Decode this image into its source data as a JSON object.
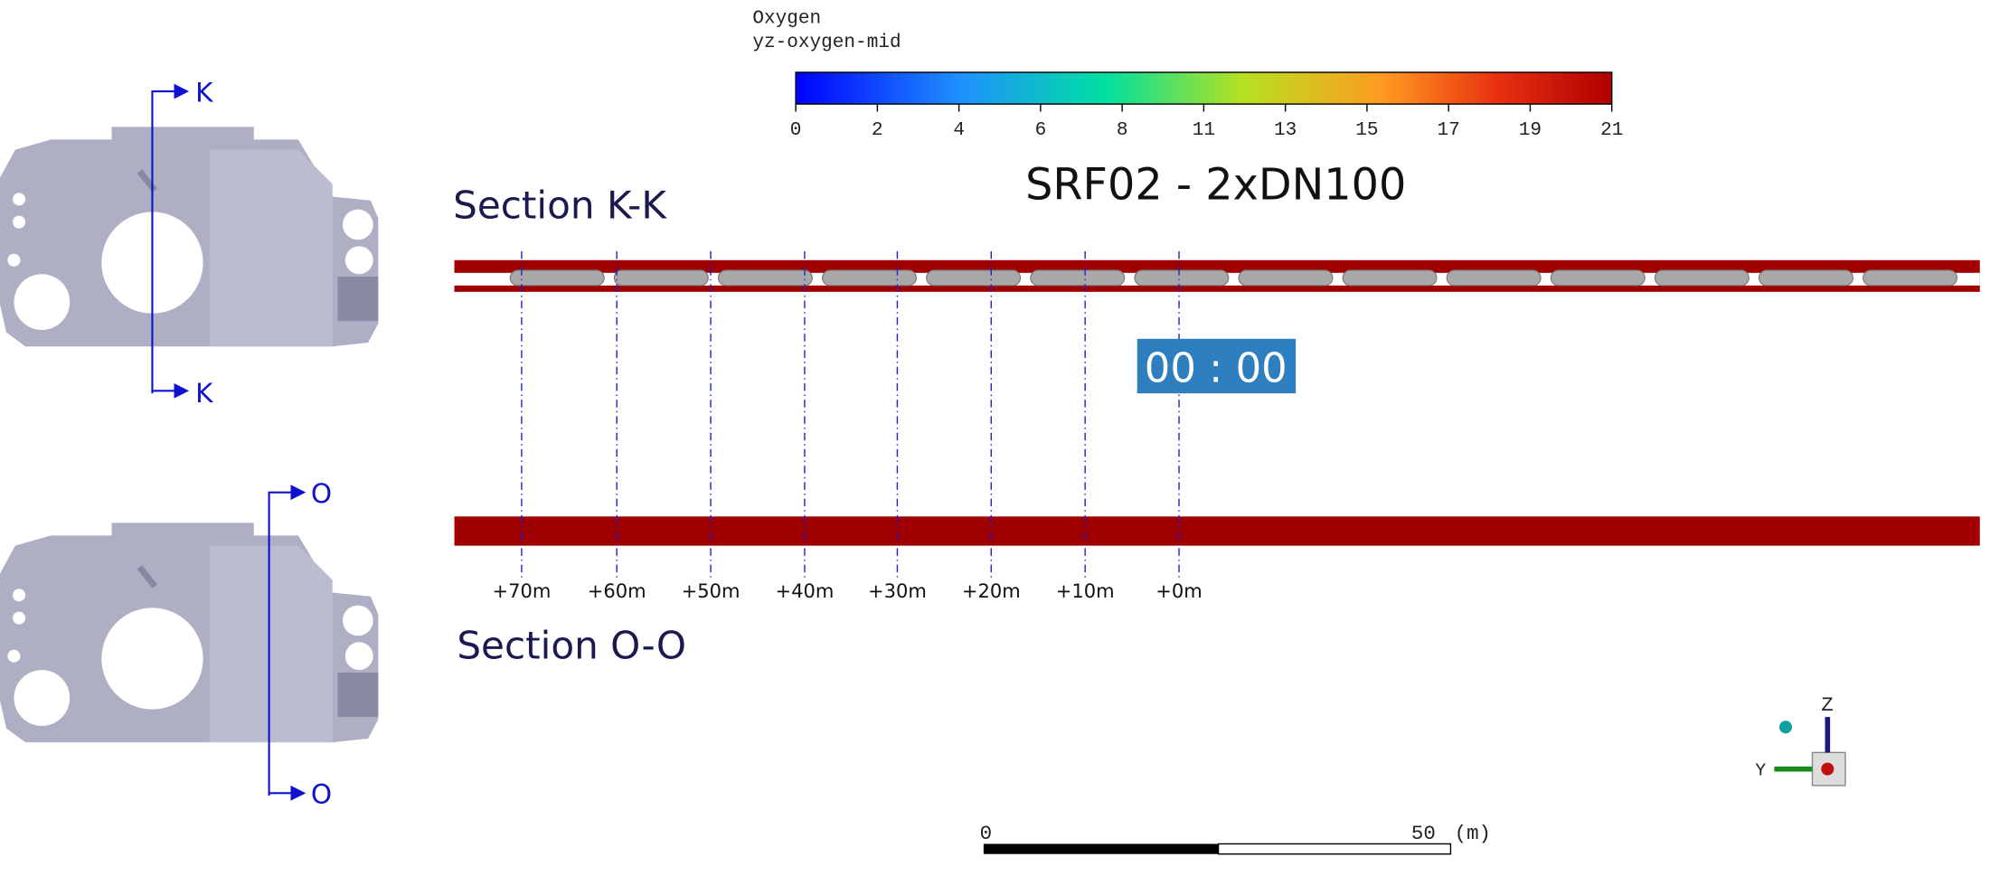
{
  "legend": {
    "title": "Oxygen",
    "subtitle": "yz-oxygen-mid",
    "range": [
      0,
      21
    ],
    "ticks": [
      {
        "value": 0,
        "label": "0"
      },
      {
        "value": 2.1,
        "label": "2"
      },
      {
        "value": 4.2,
        "label": "4"
      },
      {
        "value": 6.3,
        "label": "6"
      },
      {
        "value": 8.4,
        "label": "8"
      },
      {
        "value": 10.5,
        "label": "11"
      },
      {
        "value": 12.6,
        "label": "13"
      },
      {
        "value": 14.7,
        "label": "15"
      },
      {
        "value": 16.8,
        "label": "17"
      },
      {
        "value": 18.9,
        "label": "19"
      },
      {
        "value": 21,
        "label": "21"
      }
    ]
  },
  "title": "SRF02 - 2xDN100",
  "sections": [
    "Section K-K",
    "Section O-O"
  ],
  "cut_labels": [
    "K",
    "K",
    "O",
    "O"
  ],
  "timer": "00 : 00",
  "distance_labels": [
    "+70m",
    "+60m",
    "+50m",
    "+40m",
    "+30m",
    "+20m",
    "+10m",
    "+0m"
  ],
  "scale_bar": {
    "start": "0",
    "end": "50",
    "unit": "(m)"
  },
  "axes_triad": [
    "Z",
    "Y"
  ]
}
